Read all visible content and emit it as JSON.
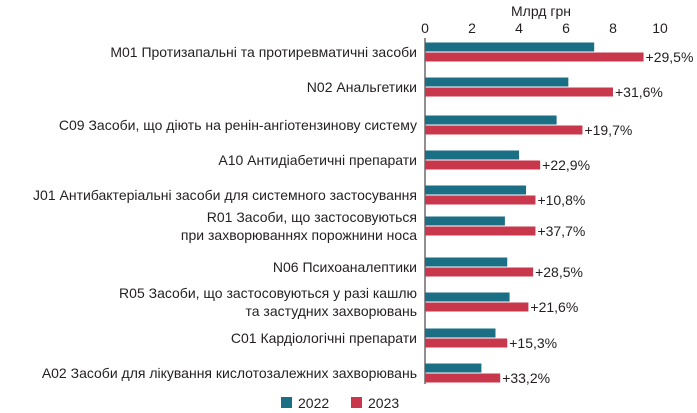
{
  "chart_data": {
    "type": "bar",
    "orientation": "horizontal",
    "unit_label": "Млрд грн",
    "xlim": [
      0,
      10
    ],
    "x_ticks": [
      "0",
      "2",
      "4",
      "6",
      "8",
      "10"
    ],
    "grid": false,
    "legend_position": "bottom",
    "categories": [
      [
        "M01 Протизапальні та протиревматичні засоби"
      ],
      [
        "N02 Анальгетики"
      ],
      [
        "C09 Засоби, що діють на ренін-ангіотензинову систему"
      ],
      [
        "A10 Антидіабетичні препарати"
      ],
      [
        "J01 Антибактеріальні засоби для системного застосування"
      ],
      [
        "R01 Засоби, що застосовуються",
        "при захворюваннях порожнини носа"
      ],
      [
        "N06 Психоаналептики"
      ],
      [
        "R05 Засоби, що застосовуються у разі кашлю",
        "та застудних захворювань"
      ],
      [
        "C01 Кардіологічні препарати"
      ],
      [
        "A02 Засоби для лікування кислотозалежних захворювань"
      ]
    ],
    "series": [
      {
        "name": "2022",
        "color": "#1b6f85",
        "values": [
          7.2,
          6.1,
          5.6,
          4.0,
          4.3,
          3.4,
          3.5,
          3.6,
          3.0,
          2.4
        ]
      },
      {
        "name": "2023",
        "color": "#c8374b",
        "values": [
          9.3,
          8.0,
          6.7,
          4.9,
          4.7,
          4.7,
          4.6,
          4.4,
          3.5,
          3.2
        ]
      }
    ],
    "data_labels": [
      "+29,5%",
      "+31,6%",
      "+19,7%",
      "+22,9%",
      "+10,8%",
      "+37,7%",
      "+28,5%",
      "+21,6%",
      "+15,3%",
      "+33,2%"
    ]
  }
}
